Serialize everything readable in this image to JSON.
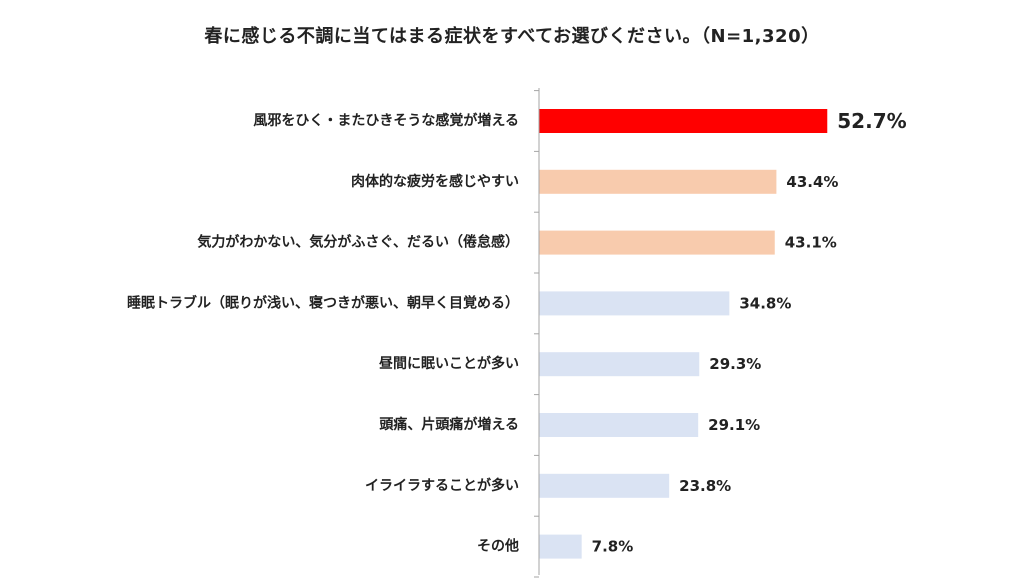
{
  "chart_data": {
    "type": "bar",
    "orientation": "horizontal",
    "title": "春に感じる不調に当てはまる症状をすべてお選びください。（N=1,320）",
    "categories": [
      "風邪をひく・またひきそうな感覚が増える",
      "肉体的な疲労を感じやすい",
      "気力がわかない、気分がふさぐ、だるい（倦怠感）",
      "睡眠トラブル（眠りが浅い、寝つきが悪い、朝早く目覚める）",
      "昼間に眠いことが多い",
      "頭痛、片頭痛が増える",
      "イライラすることが多い",
      "その他"
    ],
    "values": [
      52.7,
      43.4,
      43.1,
      34.8,
      29.3,
      29.1,
      23.8,
      7.8
    ],
    "value_labels": [
      "52.7%",
      "43.4%",
      "43.1%",
      "34.8%",
      "29.3%",
      "29.1%",
      "23.8%",
      "7.8%"
    ],
    "bar_colors": [
      "#ff0000",
      "#f8cbad",
      "#f8cbad",
      "#dae3f3",
      "#dae3f3",
      "#dae3f3",
      "#dae3f3",
      "#dae3f3"
    ],
    "axis_color": "#a6a6a6",
    "xlim": [
      0,
      100
    ],
    "grid": false,
    "legend": "none"
  }
}
